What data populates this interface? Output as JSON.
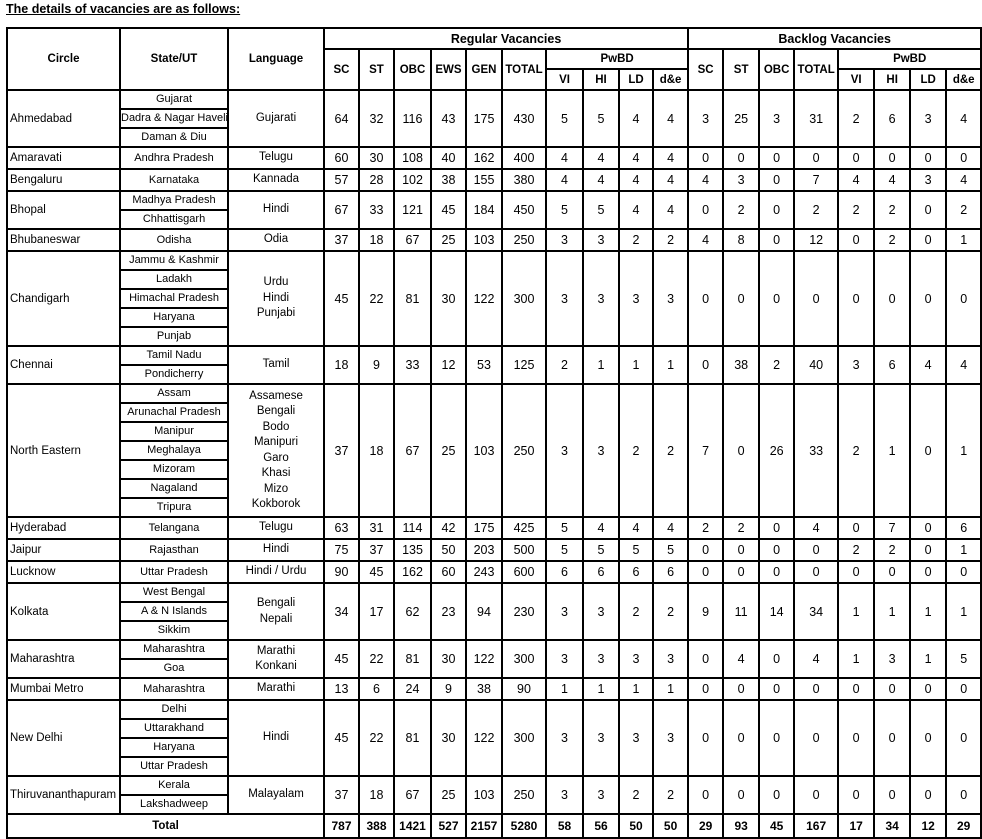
{
  "heading": "The details of vacancies are as follows:",
  "headers": {
    "circle": "Circle",
    "state": "State/UT",
    "language": "Language",
    "regular": "Regular Vacancies",
    "backlog": "Backlog Vacancies",
    "pwbd": "PwBD",
    "regular_cols": [
      "SC",
      "ST",
      "OBC",
      "EWS",
      "GEN",
      "TOTAL"
    ],
    "backlog_cols": [
      "SC",
      "ST",
      "OBC",
      "TOTAL"
    ],
    "pwbd_cols": [
      "VI",
      "HI",
      "LD",
      "d&e"
    ]
  },
  "rows": [
    {
      "circle": "Ahmedabad",
      "states": [
        "Gujarat",
        "Dadra & Nagar Haveli",
        "Daman & Diu"
      ],
      "language": [
        "Gujarati"
      ],
      "regular": [
        64,
        32,
        116,
        43,
        175,
        430
      ],
      "regular_pwbd": [
        5,
        5,
        4,
        4
      ],
      "backlog": [
        3,
        25,
        3,
        31
      ],
      "backlog_pwbd": [
        2,
        6,
        3,
        4
      ]
    },
    {
      "circle": "Amaravati",
      "states": [
        "Andhra Pradesh"
      ],
      "language": [
        "Telugu"
      ],
      "regular": [
        60,
        30,
        108,
        40,
        162,
        400
      ],
      "regular_pwbd": [
        4,
        4,
        4,
        4
      ],
      "backlog": [
        0,
        0,
        0,
        0
      ],
      "backlog_pwbd": [
        0,
        0,
        0,
        0
      ]
    },
    {
      "circle": "Bengaluru",
      "states": [
        "Karnataka"
      ],
      "language": [
        "Kannada"
      ],
      "regular": [
        57,
        28,
        102,
        38,
        155,
        380
      ],
      "regular_pwbd": [
        4,
        4,
        4,
        4
      ],
      "backlog": [
        4,
        3,
        0,
        7
      ],
      "backlog_pwbd": [
        4,
        4,
        3,
        4
      ]
    },
    {
      "circle": "Bhopal",
      "states": [
        "Madhya Pradesh",
        "Chhattisgarh"
      ],
      "language": [
        "Hindi"
      ],
      "regular": [
        67,
        33,
        121,
        45,
        184,
        450
      ],
      "regular_pwbd": [
        5,
        5,
        4,
        4
      ],
      "backlog": [
        0,
        2,
        0,
        2
      ],
      "backlog_pwbd": [
        2,
        2,
        0,
        2
      ]
    },
    {
      "circle": "Bhubaneswar",
      "states": [
        "Odisha"
      ],
      "language": [
        "Odia"
      ],
      "regular": [
        37,
        18,
        67,
        25,
        103,
        250
      ],
      "regular_pwbd": [
        3,
        3,
        2,
        2
      ],
      "backlog": [
        4,
        8,
        0,
        12
      ],
      "backlog_pwbd": [
        0,
        2,
        0,
        1
      ]
    },
    {
      "circle": "Chandigarh",
      "states": [
        "Jammu & Kashmir",
        "Ladakh",
        "Himachal Pradesh",
        "Haryana",
        "Punjab"
      ],
      "language": [
        "Urdu",
        "Hindi",
        "Punjabi"
      ],
      "regular": [
        45,
        22,
        81,
        30,
        122,
        300
      ],
      "regular_pwbd": [
        3,
        3,
        3,
        3
      ],
      "backlog": [
        0,
        0,
        0,
        0
      ],
      "backlog_pwbd": [
        0,
        0,
        0,
        0
      ]
    },
    {
      "circle": "Chennai",
      "states": [
        "Tamil Nadu",
        "Pondicherry"
      ],
      "language": [
        "Tamil"
      ],
      "regular": [
        18,
        9,
        33,
        12,
        53,
        125
      ],
      "regular_pwbd": [
        2,
        1,
        1,
        1
      ],
      "backlog": [
        0,
        38,
        2,
        40
      ],
      "backlog_pwbd": [
        3,
        6,
        4,
        4
      ]
    },
    {
      "circle": "North Eastern",
      "states": [
        "Assam",
        "Arunachal Pradesh",
        "Manipur",
        "Meghalaya",
        "Mizoram",
        "Nagaland",
        "Tripura"
      ],
      "language": [
        "Assamese",
        "Bengali",
        "Bodo",
        "Manipuri",
        "Garo",
        "Khasi",
        "Mizo",
        "Kokborok"
      ],
      "regular": [
        37,
        18,
        67,
        25,
        103,
        250
      ],
      "regular_pwbd": [
        3,
        3,
        2,
        2
      ],
      "backlog": [
        7,
        0,
        26,
        33
      ],
      "backlog_pwbd": [
        2,
        1,
        0,
        1
      ]
    },
    {
      "circle": "Hyderabad",
      "states": [
        "Telangana"
      ],
      "language": [
        "Telugu"
      ],
      "regular": [
        63,
        31,
        114,
        42,
        175,
        425
      ],
      "regular_pwbd": [
        5,
        4,
        4,
        4
      ],
      "backlog": [
        2,
        2,
        0,
        4
      ],
      "backlog_pwbd": [
        0,
        7,
        0,
        6
      ]
    },
    {
      "circle": "Jaipur",
      "states": [
        "Rajasthan"
      ],
      "language": [
        "Hindi"
      ],
      "regular": [
        75,
        37,
        135,
        50,
        203,
        500
      ],
      "regular_pwbd": [
        5,
        5,
        5,
        5
      ],
      "backlog": [
        0,
        0,
        0,
        0
      ],
      "backlog_pwbd": [
        2,
        2,
        0,
        1
      ]
    },
    {
      "circle": "Lucknow",
      "states": [
        "Uttar Pradesh"
      ],
      "language": [
        "Hindi / Urdu"
      ],
      "regular": [
        90,
        45,
        162,
        60,
        243,
        600
      ],
      "regular_pwbd": [
        6,
        6,
        6,
        6
      ],
      "backlog": [
        0,
        0,
        0,
        0
      ],
      "backlog_pwbd": [
        0,
        0,
        0,
        0
      ]
    },
    {
      "circle": "Kolkata",
      "states": [
        "West Bengal",
        "A & N Islands",
        "Sikkim"
      ],
      "language": [
        "Bengali",
        "Nepali"
      ],
      "regular": [
        34,
        17,
        62,
        23,
        94,
        230
      ],
      "regular_pwbd": [
        3,
        3,
        2,
        2
      ],
      "backlog": [
        9,
        11,
        14,
        34
      ],
      "backlog_pwbd": [
        1,
        1,
        1,
        1
      ]
    },
    {
      "circle": "Maharashtra",
      "states": [
        "Maharashtra",
        "Goa"
      ],
      "language": [
        "Marathi",
        "Konkani"
      ],
      "regular": [
        45,
        22,
        81,
        30,
        122,
        300
      ],
      "regular_pwbd": [
        3,
        3,
        3,
        3
      ],
      "backlog": [
        0,
        4,
        0,
        4
      ],
      "backlog_pwbd": [
        1,
        3,
        1,
        5
      ]
    },
    {
      "circle": "Mumbai Metro",
      "states": [
        "Maharashtra"
      ],
      "language": [
        "Marathi"
      ],
      "regular": [
        13,
        6,
        24,
        9,
        38,
        90
      ],
      "regular_pwbd": [
        1,
        1,
        1,
        1
      ],
      "backlog": [
        0,
        0,
        0,
        0
      ],
      "backlog_pwbd": [
        0,
        0,
        0,
        0
      ]
    },
    {
      "circle": "New Delhi",
      "states": [
        "Delhi",
        "Uttarakhand",
        "Haryana",
        "Uttar Pradesh"
      ],
      "language": [
        "Hindi"
      ],
      "regular": [
        45,
        22,
        81,
        30,
        122,
        300
      ],
      "regular_pwbd": [
        3,
        3,
        3,
        3
      ],
      "backlog": [
        0,
        0,
        0,
        0
      ],
      "backlog_pwbd": [
        0,
        0,
        0,
        0
      ]
    },
    {
      "circle": "Thiruvananthapuram",
      "states": [
        "Kerala",
        "Lakshadweep"
      ],
      "language": [
        "Malayalam"
      ],
      "regular": [
        37,
        18,
        67,
        25,
        103,
        250
      ],
      "regular_pwbd": [
        3,
        3,
        2,
        2
      ],
      "backlog": [
        0,
        0,
        0,
        0
      ],
      "backlog_pwbd": [
        0,
        0,
        0,
        0
      ]
    }
  ],
  "total": {
    "label": "Total",
    "regular": [
      787,
      388,
      1421,
      527,
      2157,
      5280
    ],
    "regular_pwbd": [
      58,
      56,
      50,
      50
    ],
    "backlog": [
      29,
      93,
      45,
      167
    ],
    "backlog_pwbd": [
      17,
      34,
      12,
      29
    ]
  }
}
